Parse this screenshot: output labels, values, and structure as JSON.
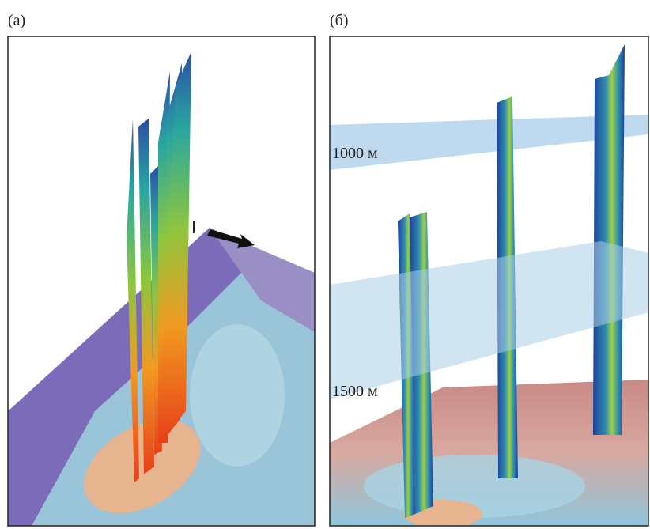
{
  "panels": [
    {
      "label": "(а)"
    },
    {
      "label": "(б)",
      "annotations": [
        "1000 м",
        "1500 м"
      ]
    }
  ]
}
